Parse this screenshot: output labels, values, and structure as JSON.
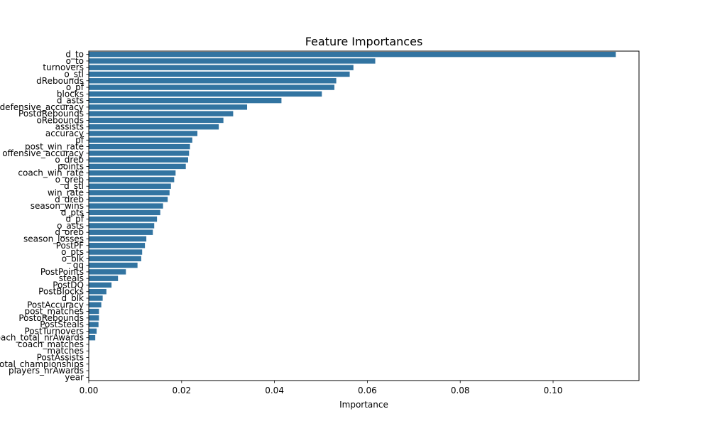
{
  "chart_data": {
    "type": "bar",
    "orientation": "horizontal",
    "title": "Feature Importances",
    "xlabel": "Importance",
    "ylabel": "",
    "xlim": [
      0,
      0.1185
    ],
    "xticks": [
      0.0,
      0.02,
      0.04,
      0.06,
      0.08,
      0.1
    ],
    "xtick_labels": [
      "0.00",
      "0.02",
      "0.04",
      "0.06",
      "0.08",
      "0.10"
    ],
    "grid": false,
    "bar_color": "#3274a1",
    "categories": [
      "d_to",
      "o_to",
      "turnovers",
      "o_stl",
      "dRebounds",
      "o_pf",
      "blocks",
      "d_asts",
      "defensive_accuracy",
      "PostdRebounds",
      "oRebounds",
      "assists",
      "accuracy",
      "pf",
      "post_win_rate",
      "offensive_accuracy",
      "o_dreb",
      "points",
      "coach_win_rate",
      "o_oreb",
      "d_stl",
      "win_rate",
      "d_dreb",
      "season_wins",
      "d_pts",
      "d_pf",
      "o_asts",
      "d_oreb",
      "season_losses",
      "PostPF",
      "o_pts",
      "o_blk",
      "gq",
      "PostPoints",
      "steals",
      "PostDQ",
      "PostBlocks",
      "d_blk",
      "PostAccuracy",
      "post_matches",
      "PostoRebounds",
      "PostSteals",
      "PostTurnovers",
      "coach_total_nrAwards",
      "coach_matches",
      "matches",
      "PostAssists",
      "total_championships",
      "players_nrAwards",
      "year"
    ],
    "values": [
      0.1135,
      0.0617,
      0.057,
      0.0562,
      0.0533,
      0.0529,
      0.0502,
      0.0415,
      0.0341,
      0.0311,
      0.029,
      0.028,
      0.0234,
      0.0223,
      0.0218,
      0.0216,
      0.0214,
      0.0209,
      0.0187,
      0.0184,
      0.0177,
      0.0174,
      0.017,
      0.016,
      0.0154,
      0.0147,
      0.0141,
      0.0138,
      0.0124,
      0.0121,
      0.0115,
      0.0113,
      0.0105,
      0.008,
      0.0063,
      0.0049,
      0.0038,
      0.003,
      0.0027,
      0.0022,
      0.0022,
      0.0021,
      0.0017,
      0.0014,
      0.0001,
      0.0001,
      0.0,
      0.0,
      0.0,
      0.0
    ]
  }
}
